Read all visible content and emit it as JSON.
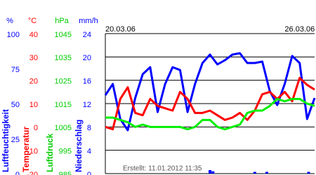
{
  "chart_data": {
    "type": "line",
    "xlim": [
      0,
      7
    ],
    "xticks": [
      {
        "value": 0,
        "label": "20.03.06"
      },
      {
        "value": 6,
        "label": "26.03.06"
      }
    ],
    "created": "Erstellt: 11.01.2012 11:35",
    "axes": [
      {
        "unit": "%",
        "label": "Luftfeuchtigkeit",
        "color": "#0000ff",
        "ylim": [
          0,
          100
        ],
        "yticks": [
          0,
          25,
          50,
          75,
          100
        ]
      },
      {
        "unit": "°C",
        "label": "Temperatur",
        "color": "#ff0000",
        "ylim": [
          -20,
          40
        ],
        "yticks": [
          -20,
          -10,
          0,
          10,
          20,
          30,
          40
        ]
      },
      {
        "unit": "hPa",
        "label": "Luftdruck",
        "color": "#00cc00",
        "ylim": [
          985,
          1045
        ],
        "yticks": [
          985,
          995,
          1005,
          1015,
          1025,
          1035,
          1045
        ]
      },
      {
        "unit": "mm/h",
        "label": "Niederschlag",
        "color": "#0000ff",
        "ylim": [
          0,
          24
        ],
        "yticks": [
          0,
          4,
          8,
          12,
          16,
          20,
          24
        ]
      }
    ],
    "grid_axis": 3,
    "x": [
      0,
      0.25,
      0.5,
      0.75,
      1,
      1.25,
      1.5,
      1.75,
      2,
      2.25,
      2.5,
      2.75,
      3,
      3.25,
      3.5,
      3.75,
      4,
      4.25,
      4.5,
      4.75,
      5,
      5.25,
      5.5,
      5.75,
      6,
      6.25,
      6.5,
      6.75,
      7
    ],
    "series": [
      {
        "type": "line",
        "axis": 0,
        "color": "#0000ff",
        "values": [
          56,
          64,
          39,
          31,
          54,
          71,
          76,
          44,
          64,
          76,
          74,
          44,
          64,
          79,
          85,
          78,
          81,
          85,
          86,
          79,
          79,
          80,
          59,
          49,
          64,
          84,
          79,
          39,
          54
        ]
      },
      {
        "type": "line",
        "axis": 1,
        "color": "#ff0000",
        "values": [
          0,
          -1,
          12,
          17,
          6,
          5,
          12,
          9,
          8,
          7,
          15,
          12,
          6,
          6,
          7,
          5,
          3,
          4,
          6,
          3,
          7,
          14,
          15,
          12,
          15,
          11,
          21,
          18,
          16
        ]
      },
      {
        "type": "line",
        "axis": 2,
        "color": "#00ee00",
        "values": [
          1009,
          1009,
          1008,
          1007,
          1005,
          1006,
          1005,
          1005,
          1005,
          1005,
          1005,
          1004,
          1005,
          1008,
          1008,
          1005,
          1004,
          1005,
          1006,
          1011,
          1012,
          1012,
          1014,
          1017,
          1016,
          1017,
          1017,
          1015,
          1014
        ]
      },
      {
        "type": "bar",
        "axis": 3,
        "color": "#0000ff",
        "x": [
          3.5,
          3.6,
          5.0,
          5.4,
          6.8
        ],
        "values": [
          0.6,
          0.4,
          0.3,
          0.3,
          0.3
        ]
      }
    ]
  }
}
